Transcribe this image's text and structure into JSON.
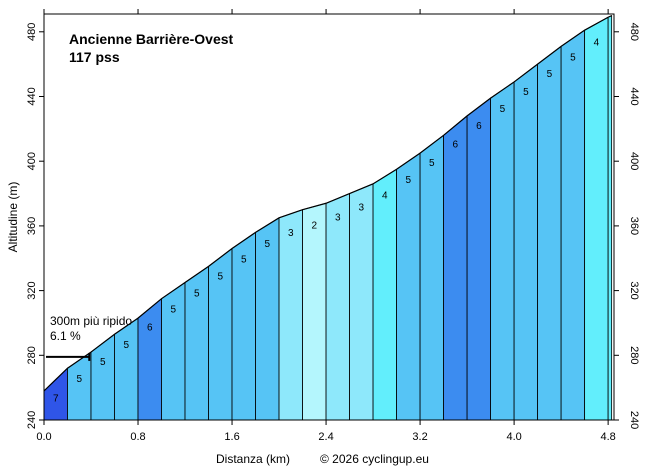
{
  "chart_data": {
    "type": "area",
    "title": "Ancienne Barrière-Ovest",
    "subtitle": "117 pss",
    "xlabel": "Distanza (km)",
    "ylabel": "Altitudine (m)",
    "credit": "© 2026 cyclingup.eu",
    "xlim": [
      0,
      4.85
    ],
    "ylim": [
      240,
      491
    ],
    "x_ticks": [
      "0.0",
      "0.8",
      "1.6",
      "2.4",
      "3.2",
      "4.0",
      "4.8"
    ],
    "x_tick_values": [
      0,
      0.8,
      1.6,
      2.4,
      3.2,
      4.0,
      4.8
    ],
    "y_ticks": [
      "240",
      "280",
      "320",
      "360",
      "400",
      "440",
      "480"
    ],
    "y_tick_values": [
      240,
      280,
      320,
      360,
      400,
      440,
      480
    ],
    "grid": false,
    "steepest": {
      "label": "300m più ripido",
      "value": "6.1 %",
      "from_km": 0.0,
      "to_km": 0.3,
      "altitude": 279
    },
    "profile_x": [
      0.0,
      0.2,
      0.4,
      0.6,
      0.8,
      1.0,
      1.2,
      1.4,
      1.6,
      1.8,
      2.0,
      2.2,
      2.4,
      2.6,
      2.8,
      3.0,
      3.2,
      3.4,
      3.6,
      3.8,
      4.0,
      4.2,
      4.4,
      4.6,
      4.8,
      4.83
    ],
    "profile_y": [
      258,
      272,
      282,
      293,
      303,
      315,
      325,
      335,
      346,
      356,
      365,
      370,
      374,
      380,
      386,
      395,
      405,
      416,
      428,
      439,
      449,
      460,
      471,
      481,
      489,
      490
    ],
    "segments": [
      {
        "gradient": "7",
        "color": "#2f55e8"
      },
      {
        "gradient": "5",
        "color": "#56c4f5"
      },
      {
        "gradient": "5",
        "color": "#56c4f5"
      },
      {
        "gradient": "5",
        "color": "#56c4f5"
      },
      {
        "gradient": "6",
        "color": "#3c8cf0"
      },
      {
        "gradient": "5",
        "color": "#56c4f5"
      },
      {
        "gradient": "5",
        "color": "#56c4f5"
      },
      {
        "gradient": "5",
        "color": "#56c4f5"
      },
      {
        "gradient": "5",
        "color": "#56c4f5"
      },
      {
        "gradient": "5",
        "color": "#56c4f5"
      },
      {
        "gradient": "3",
        "color": "#8ee8fb"
      },
      {
        "gradient": "2",
        "color": "#b4f6fd"
      },
      {
        "gradient": "3",
        "color": "#8ee8fb"
      },
      {
        "gradient": "3",
        "color": "#8ee8fb"
      },
      {
        "gradient": "4",
        "color": "#62eefc"
      },
      {
        "gradient": "5",
        "color": "#56c4f5"
      },
      {
        "gradient": "5",
        "color": "#56c4f5"
      },
      {
        "gradient": "6",
        "color": "#3c8cf0"
      },
      {
        "gradient": "6",
        "color": "#3c8cf0"
      },
      {
        "gradient": "5",
        "color": "#56c4f5"
      },
      {
        "gradient": "5",
        "color": "#56c4f5"
      },
      {
        "gradient": "5",
        "color": "#56c4f5"
      },
      {
        "gradient": "5",
        "color": "#56c4f5"
      },
      {
        "gradient": "4",
        "color": "#62eefc"
      },
      {
        "gradient": "",
        "color": "#62eefc"
      }
    ]
  }
}
